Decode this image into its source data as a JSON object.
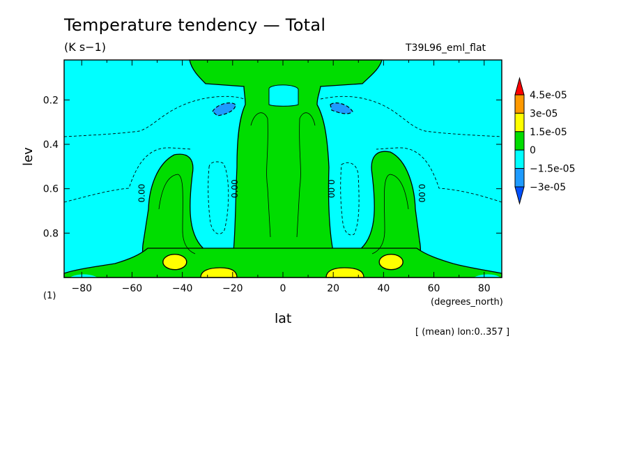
{
  "chart_data": {
    "type": "heatmap",
    "title": "Temperature tendency — Total",
    "units": "(K s−1)",
    "run_label": "T39L96_eml_flat",
    "xlabel": "lat",
    "x_units": "(degrees_north)",
    "ylabel": "lev",
    "mean_note": "[ (mean) lon:0..357 ]",
    "figure_number": "(1)",
    "xlim": [
      -87,
      87
    ],
    "ylim": [
      1.0,
      0.02
    ],
    "x_ticks": [
      -80,
      -60,
      -40,
      -20,
      0,
      20,
      40,
      60,
      80
    ],
    "x_tick_labels": [
      "−80",
      "−60",
      "−40",
      "−20",
      "0",
      "20",
      "40",
      "60",
      "80"
    ],
    "y_ticks": [
      0.2,
      0.4,
      0.6,
      0.8
    ],
    "y_tick_labels": [
      "0.2",
      "0.4",
      "0.6",
      "0.8"
    ],
    "contour_labels": [
      {
        "text": "0.00",
        "lat": -55,
        "lev": 0.62
      },
      {
        "text": "0.00",
        "lat": -18,
        "lev": 0.6
      },
      {
        "text": "0.00",
        "lat": 18,
        "lev": 0.6
      },
      {
        "text": "0.00",
        "lat": 54,
        "lev": 0.62
      }
    ],
    "colorbar": {
      "labels": [
        "4.5e-05",
        "3e-05",
        "1.5e-05",
        "0",
        "−1.5e-05",
        "−3e-05"
      ],
      "colors": [
        "#ff0000",
        "#ff9900",
        "#ffff00",
        "#00dd00",
        "#00ffff",
        "#1e9bff",
        "#0050ff"
      ]
    },
    "regions": [
      {
        "name": "background",
        "sign": "negative",
        "range": "-1.5e-05 to 0",
        "color": "#00ffff"
      },
      {
        "name": "central-column",
        "sign": "positive",
        "range": "0 to 1.5e-05",
        "lat": [
          -20,
          20
        ],
        "lev": [
          0.02,
          1.0
        ],
        "color": "#00dd00"
      },
      {
        "name": "left-arm",
        "sign": "positive",
        "range": "0 to 1.5e-05",
        "lat": [
          -62,
          -38
        ],
        "lev": [
          0.42,
          1.0
        ],
        "color": "#00dd00"
      },
      {
        "name": "right-arm",
        "sign": "positive",
        "range": "0 to 1.5e-05",
        "lat": [
          38,
          62
        ],
        "lev": [
          0.42,
          1.0
        ],
        "color": "#00dd00"
      },
      {
        "name": "lower-band",
        "sign": "positive",
        "range": "0 to 1.5e-05",
        "lat": [
          -70,
          75
        ],
        "lev": [
          0.88,
          1.0
        ],
        "color": "#00dd00"
      },
      {
        "name": "left-yellow-low",
        "range": "1.5e-05 to 3e-05",
        "lat": -43,
        "lev": 0.93,
        "color": "#ffff00"
      },
      {
        "name": "right-yellow-low",
        "range": "1.5e-05 to 3e-05",
        "lat": 43,
        "lev": 0.93,
        "color": "#ffff00"
      },
      {
        "name": "inner-left-yellow",
        "range": "1.5e-05 to 3e-05",
        "lat": -28,
        "lev": 0.98,
        "color": "#ffff00"
      },
      {
        "name": "inner-right-yellow",
        "range": "1.5e-05 to 3e-05",
        "lat": 28,
        "lev": 0.98,
        "color": "#ffff00"
      },
      {
        "name": "left-blue-upper",
        "range": "-3e-05 to -1.5e-05",
        "lat": -25,
        "lev": 0.22,
        "color": "#1e9bff"
      },
      {
        "name": "right-blue-upper",
        "range": "-3e-05 to -1.5e-05",
        "lat": 25,
        "lev": 0.22,
        "color": "#1e9bff"
      }
    ]
  }
}
